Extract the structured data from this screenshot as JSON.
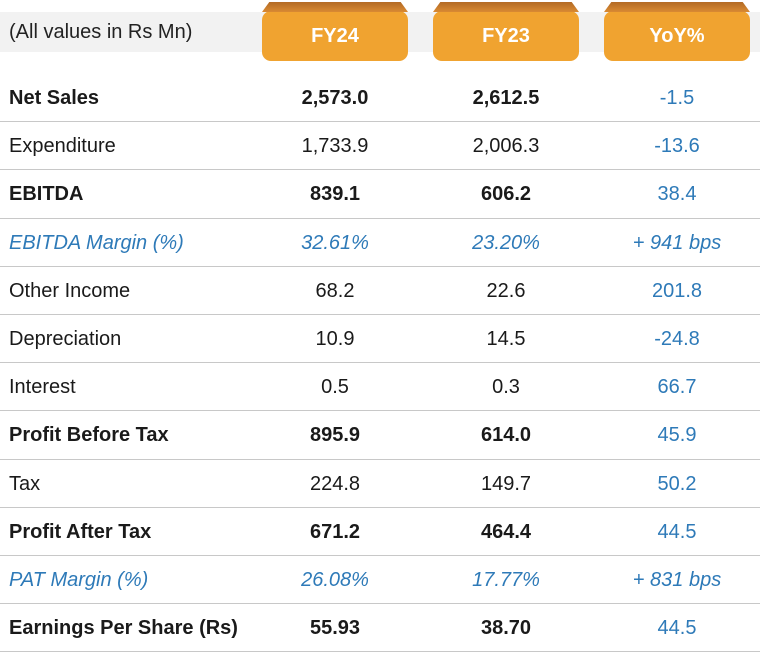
{
  "header": {
    "units": "(All values in Rs Mn)",
    "columns": [
      "FY24",
      "FY23",
      "YoY%"
    ]
  },
  "rows": [
    {
      "label": "Net Sales",
      "fy24": "2,573.0",
      "fy23": "2,612.5",
      "yoy": "-1.5",
      "style": "bold"
    },
    {
      "label": "Expenditure",
      "fy24": "1,733.9",
      "fy23": "2,006.3",
      "yoy": "-13.6",
      "style": "normal"
    },
    {
      "label": "EBITDA",
      "fy24": "839.1",
      "fy23": "606.2",
      "yoy": "38.4",
      "style": "bold"
    },
    {
      "label": "EBITDA Margin (%)",
      "fy24": "32.61%",
      "fy23": "23.20%",
      "yoy": "+ 941 bps",
      "style": "italic"
    },
    {
      "label": "Other Income",
      "fy24": "68.2",
      "fy23": "22.6",
      "yoy": "201.8",
      "style": "normal"
    },
    {
      "label": "Depreciation",
      "fy24": "10.9",
      "fy23": "14.5",
      "yoy": "-24.8",
      "style": "normal"
    },
    {
      "label": "Interest",
      "fy24": "0.5",
      "fy23": "0.3",
      "yoy": "66.7",
      "style": "normal"
    },
    {
      "label": "Profit Before Tax",
      "fy24": "895.9",
      "fy23": "614.0",
      "yoy": "45.9",
      "style": "bold"
    },
    {
      "label": "Tax",
      "fy24": "224.8",
      "fy23": "149.7",
      "yoy": "50.2",
      "style": "normal"
    },
    {
      "label": "Profit After Tax",
      "fy24": "671.2",
      "fy23": "464.4",
      "yoy": "44.5",
      "style": "bold"
    },
    {
      "label": "PAT Margin (%)",
      "fy24": "26.08%",
      "fy23": "17.77%",
      "yoy": "+ 831 bps",
      "style": "italic"
    },
    {
      "label": "Earnings Per Share (Rs)",
      "fy24": "55.93",
      "fy23": "38.70",
      "yoy": "44.5",
      "style": "bold"
    }
  ],
  "colors": {
    "tab": "#f0a330",
    "accent_blue": "#2e7ab8",
    "header_band": "#f2f2f2"
  }
}
